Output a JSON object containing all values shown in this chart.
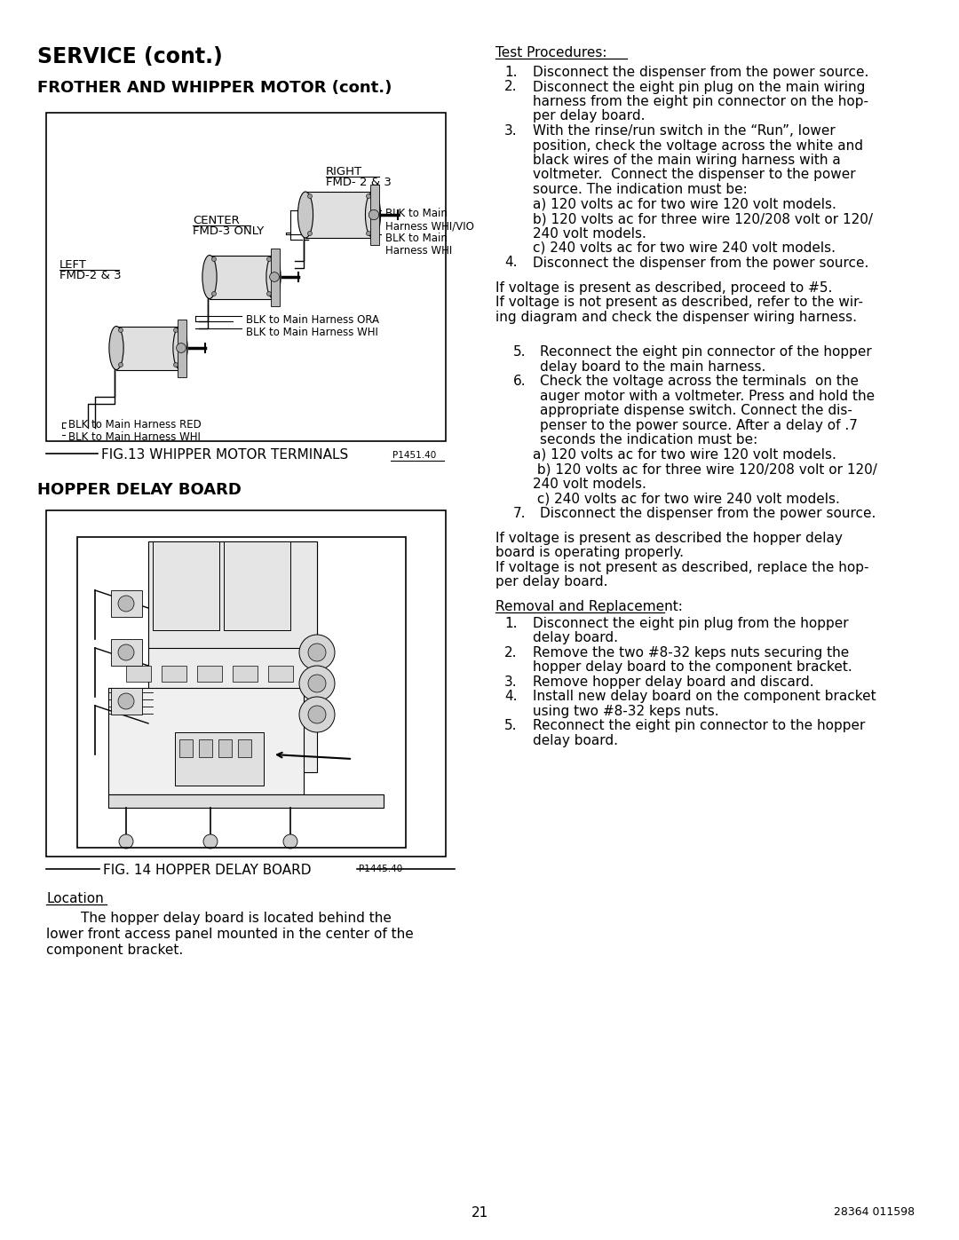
{
  "page_bg": "#ffffff",
  "page_width": 10.8,
  "page_height": 13.97,
  "dpi": 100,
  "title1": "SERVICE (cont.)",
  "title2": "FROTHER AND WHIPPER MOTOR (cont.)",
  "section2": "HOPPER DELAY BOARD",
  "fig13_caption": "FIG.13 WHIPPER MOTOR TERMINALS",
  "fig13_part": "P1451.40",
  "fig14_caption": "FIG. 14 HOPPER DELAY BOARD",
  "fig14_part": "P1445.40",
  "location_head": "Location",
  "location_body": [
    "        The hopper delay board is located behind the",
    "lower front access panel mounted in the center of the",
    "component bracket."
  ],
  "test_head": "Test Procedures:",
  "right_col_lines": [
    {
      "type": "numbered",
      "num": "1.",
      "text": "Disconnect the dispenser from the power source."
    },
    {
      "type": "numbered",
      "num": "2.",
      "text": "Disconnect the eight pin plug on the main wiring"
    },
    {
      "type": "cont",
      "text": "harness from the eight pin connector on the hop-"
    },
    {
      "type": "cont",
      "text": "per delay board."
    },
    {
      "type": "numbered",
      "num": "3.",
      "text": "With the rinse/run switch in the “Run”, lower"
    },
    {
      "type": "cont",
      "text": "position, check the voltage across the white and"
    },
    {
      "type": "cont",
      "text": "black wires of the main wiring harness with a"
    },
    {
      "type": "cont",
      "text": "voltmeter.  Connect the dispenser to the power"
    },
    {
      "type": "cont",
      "text": "source. The indication must be:"
    },
    {
      "type": "sub",
      "text": "a) 120 volts ac for two wire 120 volt models."
    },
    {
      "type": "sub",
      "text": "b) 120 volts ac for three wire 120/208 volt or 120/"
    },
    {
      "type": "sub2",
      "text": "240 volt models."
    },
    {
      "type": "sub",
      "text": "c) 240 volts ac for two wire 240 volt models."
    },
    {
      "type": "numbered",
      "num": "4.",
      "text": "Disconnect the dispenser from the power source."
    },
    {
      "type": "blank"
    },
    {
      "type": "plain",
      "text": "If voltage is present as described, proceed to #5."
    },
    {
      "type": "plain",
      "text": "If voltage is not present as described, refer to the wir-"
    },
    {
      "type": "plain",
      "text": "ing diagram and check the dispenser wiring harness."
    },
    {
      "type": "blank"
    },
    {
      "type": "blank"
    },
    {
      "type": "num2",
      "num": "5.",
      "text": "Reconnect the eight pin connector of the hopper"
    },
    {
      "type": "cont2",
      "text": "delay board to the main harness."
    },
    {
      "type": "num2",
      "num": "6.",
      "text": "Check the voltage across the terminals  on the"
    },
    {
      "type": "cont2",
      "text": "auger motor with a voltmeter. Press and hold the"
    },
    {
      "type": "cont2",
      "text": "appropriate dispense switch. Connect the dis-"
    },
    {
      "type": "cont2",
      "text": "penser to the power source. After a delay of .7"
    },
    {
      "type": "cont2",
      "text": "seconds the indication must be:"
    },
    {
      "type": "sub",
      "text": "a) 120 volts ac for two wire 120 volt models."
    },
    {
      "type": "sub",
      "text": " b) 120 volts ac for three wire 120/208 volt or 120/"
    },
    {
      "type": "sub2",
      "text": "240 volt models."
    },
    {
      "type": "sub",
      "text": " c) 240 volts ac for two wire 240 volt models."
    },
    {
      "type": "num2",
      "num": "7.",
      "text": "Disconnect the dispenser from the power source."
    },
    {
      "type": "blank"
    },
    {
      "type": "plain",
      "text": "If voltage is present as described the hopper delay"
    },
    {
      "type": "plain",
      "text": "board is operating properly."
    },
    {
      "type": "plain",
      "text": "If voltage is not present as described, replace the hop-"
    },
    {
      "type": "plain",
      "text": "per delay board."
    },
    {
      "type": "blank"
    },
    {
      "type": "underhead",
      "text": "Removal and Replacement:"
    },
    {
      "type": "numbered",
      "num": "1.",
      "text": "Disconnect the eight pin plug from the hopper"
    },
    {
      "type": "cont",
      "text": "delay board."
    },
    {
      "type": "numbered",
      "num": "2.",
      "text": "Remove the two #8-32 keps nuts securing the"
    },
    {
      "type": "cont",
      "text": "hopper delay board to the component bracket."
    },
    {
      "type": "numbered",
      "num": "3.",
      "text": "Remove hopper delay board and discard."
    },
    {
      "type": "numbered",
      "num": "4.",
      "text": "Install new delay board on the component bracket"
    },
    {
      "type": "cont",
      "text": "using two #8-32 keps nuts."
    },
    {
      "type": "numbered",
      "num": "5.",
      "text": "Reconnect the eight pin connector to the hopper"
    },
    {
      "type": "cont",
      "text": "delay board."
    }
  ],
  "page_num": "21",
  "doc_num": "28364 011598"
}
